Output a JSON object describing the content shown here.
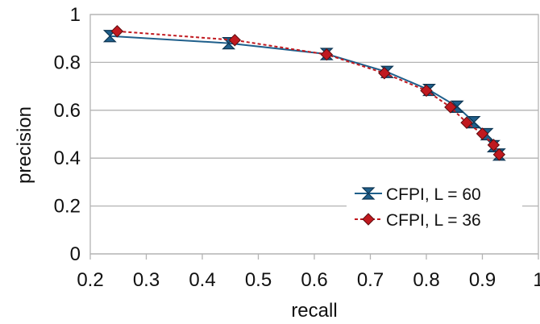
{
  "chart_data": {
    "type": "line",
    "xlabel": "recall",
    "ylabel": "precision",
    "xlim": [
      0.2,
      1
    ],
    "ylim": [
      0,
      1
    ],
    "x_ticks": [
      "0.2",
      "0.3",
      "0.4",
      "0.5",
      "0.6",
      "0.7",
      "0.8",
      "0.9",
      "1"
    ],
    "y_ticks": [
      "0",
      "0.2",
      "0.4",
      "0.6",
      "0.8",
      "1"
    ],
    "grid": "horizontal",
    "legend_position": "bottom-right",
    "series": [
      {
        "name": "CFPI, L = 60",
        "color": "#1f5f8b",
        "marker": "hourglass",
        "line_style": "solid",
        "points": [
          [
            0.235,
            0.91
          ],
          [
            0.447,
            0.88
          ],
          [
            0.622,
            0.835
          ],
          [
            0.73,
            0.76
          ],
          [
            0.805,
            0.685
          ],
          [
            0.855,
            0.615
          ],
          [
            0.885,
            0.55
          ],
          [
            0.908,
            0.5
          ],
          [
            0.92,
            0.45
          ],
          [
            0.93,
            0.415
          ]
        ]
      },
      {
        "name": "CFPI, L = 36",
        "color": "#c0191f",
        "marker": "diamond",
        "line_style": "dashed",
        "points": [
          [
            0.248,
            0.93
          ],
          [
            0.458,
            0.893
          ],
          [
            0.622,
            0.833
          ],
          [
            0.725,
            0.755
          ],
          [
            0.8,
            0.682
          ],
          [
            0.843,
            0.613
          ],
          [
            0.872,
            0.548
          ],
          [
            0.9,
            0.502
          ],
          [
            0.92,
            0.455
          ],
          [
            0.93,
            0.415
          ]
        ]
      }
    ]
  }
}
